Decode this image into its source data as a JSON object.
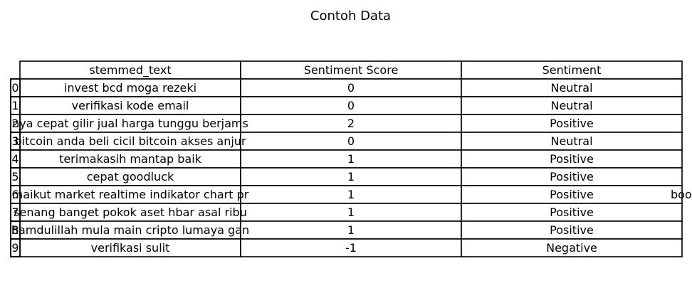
{
  "chart_data": {
    "type": "table",
    "title": "Contoh Data",
    "columns": [
      "stemmed_text",
      "Sentiment Score",
      "Sentiment"
    ],
    "row_labels": [
      "0",
      "1",
      "2",
      "3",
      "4",
      "5",
      "6",
      "7",
      "8",
      "9"
    ],
    "rows": [
      {
        "stemmed_text": "invest bcd moga rezeki",
        "score": "0",
        "sentiment": "Neutral"
      },
      {
        "stemmed_text": "verifikasi kode email",
        "score": "0",
        "sentiment": "Neutral"
      },
      {
        "stemmed_text": "nya cepat gilir jual harga tunggu berjams",
        "score": "2",
        "sentiment": "Positive"
      },
      {
        "stemmed_text": "bitcoin anda beli cicil bitcoin akses anjur",
        "score": "0",
        "sentiment": "Neutral"
      },
      {
        "stemmed_text": "terimakasih mantap baik",
        "score": "1",
        "sentiment": "Positive"
      },
      {
        "stemmed_text": "cepat goodluck",
        "score": "1",
        "sentiment": "Positive"
      },
      {
        "stemmed_text": "maikut market realtime indikator chart pr",
        "score": "1",
        "sentiment": "Positive",
        "overflow": "boo"
      },
      {
        "stemmed_text": "senang banget pokok aset hbar asal ribu",
        "score": "1",
        "sentiment": "Positive"
      },
      {
        "stemmed_text": "hamdulillah mula main cripto lumaya gan",
        "score": "1",
        "sentiment": "Positive"
      },
      {
        "stemmed_text": "verifikasi sulit",
        "score": "-1",
        "sentiment": "Negative"
      }
    ]
  }
}
